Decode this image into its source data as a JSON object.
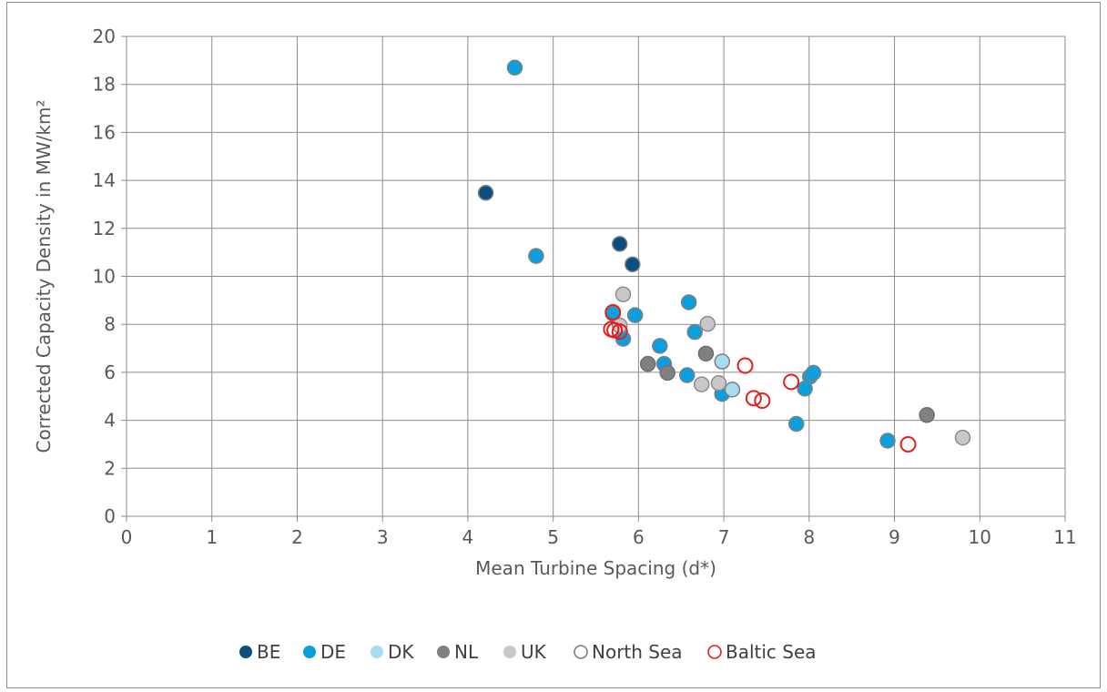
{
  "chart_data": {
    "type": "scatter",
    "title": "",
    "xlabel": "Mean Turbine Spacing (d*)",
    "ylabel": "Corrected Capacity Density in MW/km²",
    "xlim": [
      0,
      11
    ],
    "ylim": [
      0,
      20
    ],
    "x_ticks": [
      "0",
      "1",
      "2",
      "3",
      "4",
      "5",
      "6",
      "7",
      "8",
      "9",
      "10",
      "11"
    ],
    "y_ticks": [
      "0",
      "2",
      "4",
      "6",
      "8",
      "10",
      "12",
      "14",
      "16",
      "18",
      "20"
    ],
    "grid": true,
    "legend_position": "bottom",
    "series": [
      {
        "name": "BE",
        "color": "#0b4f80",
        "edge": "#7f7f7f",
        "points": [
          [
            4.21,
            13.48
          ],
          [
            5.78,
            11.35
          ],
          [
            5.93,
            10.5
          ]
        ]
      },
      {
        "name": "DE",
        "color": "#0aa0e0",
        "edge": "#7f7f7f",
        "points": [
          [
            4.55,
            18.7
          ],
          [
            4.8,
            10.85
          ],
          [
            5.7,
            8.45
          ],
          [
            5.82,
            7.4
          ],
          [
            5.96,
            8.38
          ],
          [
            6.25,
            7.1
          ],
          [
            6.3,
            6.35
          ],
          [
            6.57,
            5.88
          ],
          [
            6.59,
            8.92
          ],
          [
            6.66,
            7.68
          ],
          [
            6.98,
            5.1
          ],
          [
            7.85,
            3.85
          ],
          [
            7.95,
            5.32
          ],
          [
            8.01,
            5.82
          ],
          [
            8.05,
            5.98
          ],
          [
            8.92,
            3.15
          ]
        ]
      },
      {
        "name": "DK",
        "color": "#a6dcf2",
        "edge": "#7f7f7f",
        "points": [
          [
            6.98,
            6.45
          ],
          [
            7.1,
            5.28
          ]
        ]
      },
      {
        "name": "NL",
        "color": "#808080",
        "edge": "#6f6f6f",
        "points": [
          [
            6.11,
            6.35
          ],
          [
            6.34,
            5.98
          ],
          [
            6.79,
            6.78
          ],
          [
            9.38,
            4.22
          ]
        ]
      },
      {
        "name": "UK",
        "color": "#c8c8c8",
        "edge": "#8c8c8c",
        "points": [
          [
            5.82,
            9.25
          ],
          [
            5.78,
            7.95
          ],
          [
            6.74,
            5.5
          ],
          [
            6.81,
            8.02
          ],
          [
            6.94,
            5.55
          ],
          [
            9.8,
            3.28
          ]
        ]
      },
      {
        "name": "North Sea",
        "marker": "hollow",
        "color": "#ffffff",
        "edge": "#7f7f7f",
        "points": []
      },
      {
        "name": "Baltic Sea",
        "marker": "hollow",
        "color": "none",
        "edge": "#e02020",
        "points": [
          [
            5.68,
            7.8
          ],
          [
            5.72,
            7.75
          ],
          [
            5.78,
            7.7
          ],
          [
            5.7,
            8.5
          ],
          [
            7.25,
            6.28
          ],
          [
            7.35,
            4.92
          ],
          [
            7.45,
            4.82
          ],
          [
            7.79,
            5.6
          ],
          [
            9.16,
            3.0
          ]
        ]
      }
    ]
  }
}
